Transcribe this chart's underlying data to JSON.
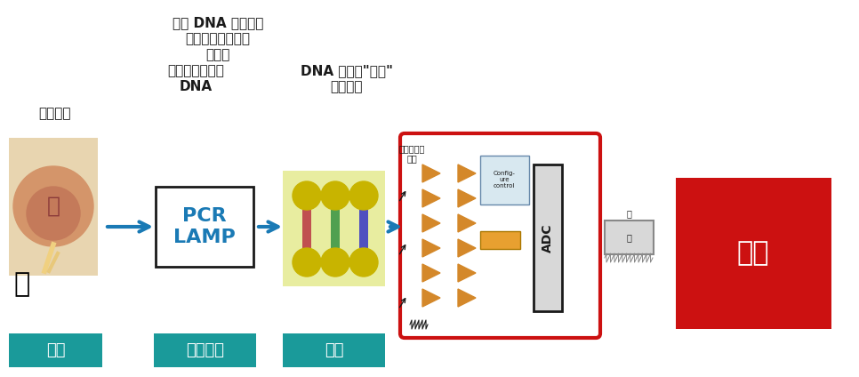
{
  "bg_color": "#ffffff",
  "teal_color": "#1a9a9a",
  "red_color": "#cc1111",
  "arrow_color": "#1a7ab5",
  "text_color_white": "#ffffff",
  "text_color_black": "#1a1a1a",
  "title_text1": "一个 DNA 样本产生",
  "title_text2": "的信号不足以被检",
  "title_text3": "测到。",
  "title_text4": "因此，我们复制",
  "title_text5": "DNA",
  "label_nasopharynx": "鼻腔采样",
  "label_sample": "样品",
  "label_amplify": "核酸扩增",
  "label_fluorescence": "荧光",
  "label_pcr": "PCR\nLAMP",
  "label_dna_amp": "DNA 扩增时\"荧光\"",
  "label_signal": "信号增加",
  "label_process": "处理",
  "label_adc": "ADC",
  "label_photodiode": "光电二极管\n阵列"
}
